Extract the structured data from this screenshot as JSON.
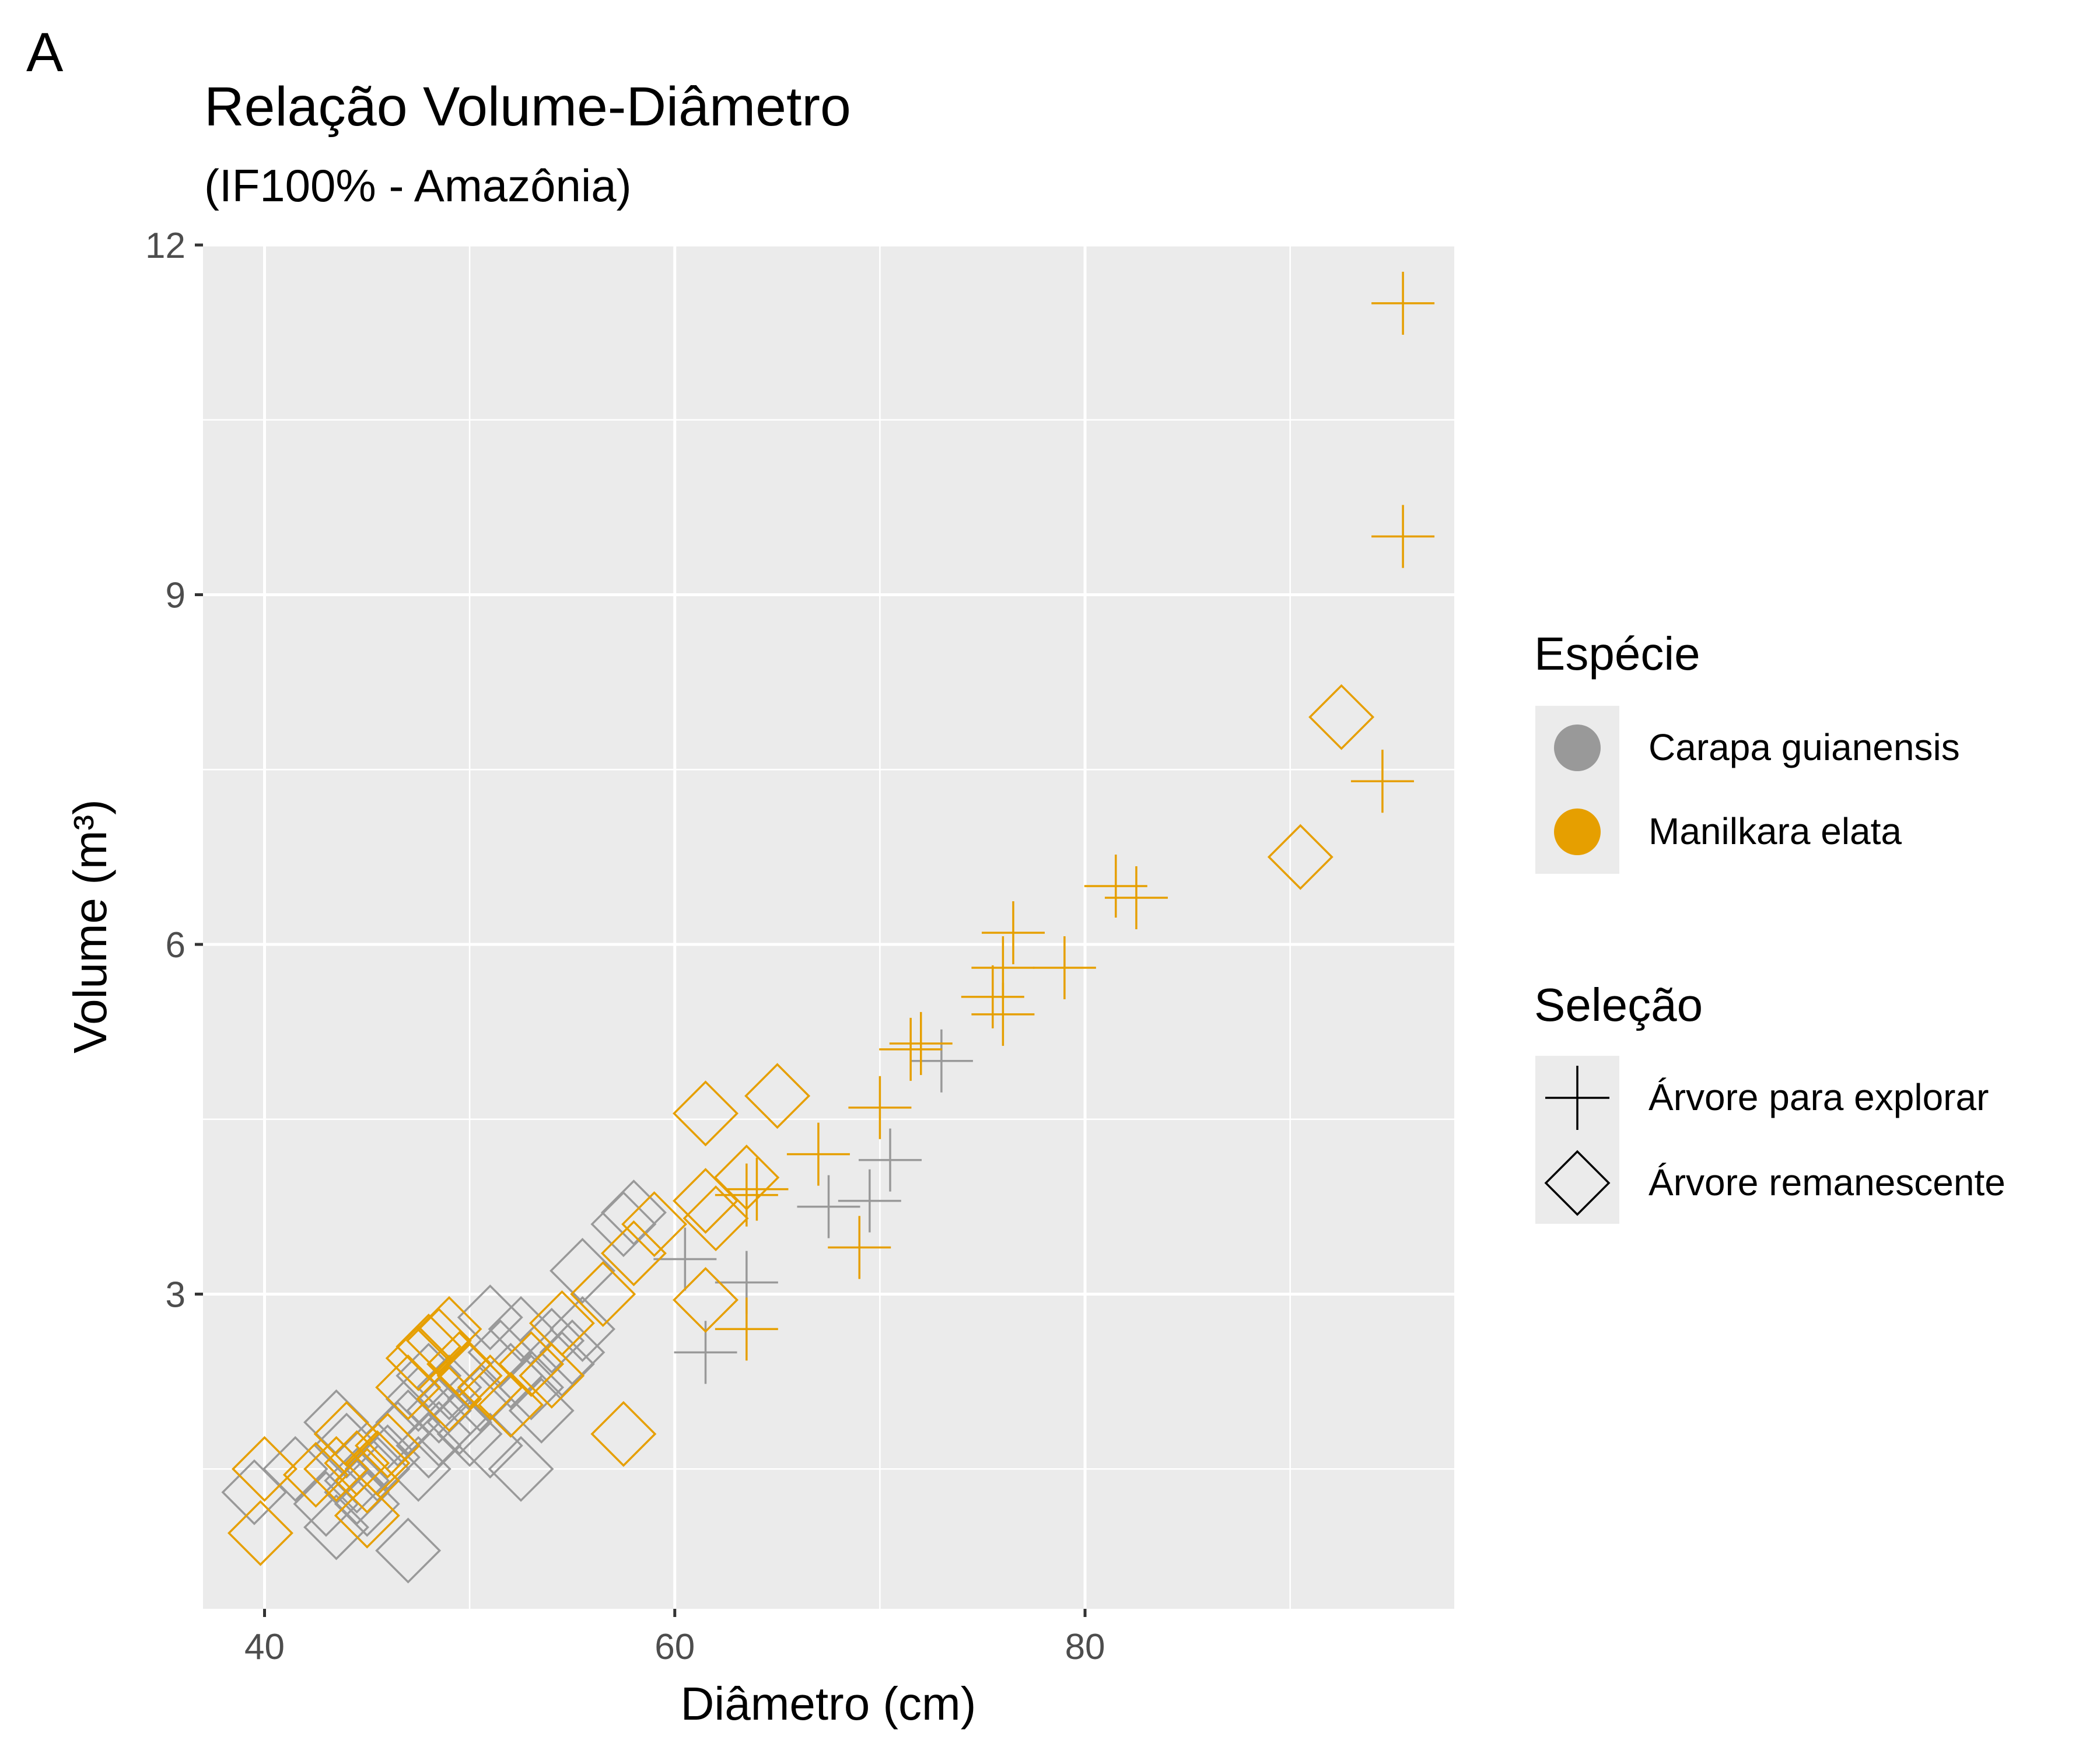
{
  "panel_tag": "A",
  "chart_data": {
    "type": "scatter",
    "title": "Relação Volume-Diâmetro",
    "subtitle": "(IF100% - Amazônia)",
    "xlabel": "Diâmetro (cm)",
    "ylabel": "Volume (m³)",
    "xlim": [
      37,
      98
    ],
    "ylim": [
      0.3,
      12
    ],
    "x_ticks": [
      40,
      60,
      80
    ],
    "y_ticks": [
      3,
      6,
      9,
      12
    ],
    "x_tick_labels": [
      "40",
      "60",
      "80"
    ],
    "y_tick_labels": [
      "3",
      "6",
      "9",
      "12"
    ],
    "grid": true,
    "panel_background": "#EBEBEB",
    "legend_placement": "right",
    "legends": {
      "color": {
        "title": "Espécie",
        "entries": [
          {
            "label": "Carapa guianensis",
            "color": "#999999"
          },
          {
            "label": "Manilkara elata",
            "color": "#E69F00"
          }
        ]
      },
      "shape": {
        "title": "Seleção",
        "entries": [
          {
            "label": "Árvore para explorar",
            "shape": "plus"
          },
          {
            "label": "Árvore remanescente",
            "shape": "diamond"
          }
        ]
      }
    },
    "series": [
      {
        "species": "Carapa guianensis",
        "selection": "Árvore para explorar",
        "color": "#999999",
        "shape": "plus",
        "points": [
          [
            61.5,
            2.5
          ],
          [
            63.5,
            3.1
          ],
          [
            60.5,
            3.3
          ],
          [
            67.5,
            3.75
          ],
          [
            69.5,
            3.8
          ],
          [
            70.5,
            4.15
          ],
          [
            73.0,
            5.0
          ]
        ]
      },
      {
        "species": "Carapa guianensis",
        "selection": "Árvore remanescente",
        "color": "#999999",
        "shape": "diamond",
        "points": [
          [
            39.5,
            1.3
          ],
          [
            41.5,
            1.5
          ],
          [
            43.0,
            1.2
          ],
          [
            43.5,
            1.0
          ],
          [
            43.5,
            1.9
          ],
          [
            44.0,
            1.7
          ],
          [
            44.5,
            1.3
          ],
          [
            44.5,
            1.4
          ],
          [
            45.0,
            1.2
          ],
          [
            45.5,
            1.5
          ],
          [
            46.0,
            1.6
          ],
          [
            46.5,
            1.8
          ],
          [
            47.0,
            0.8
          ],
          [
            47.0,
            1.9
          ],
          [
            47.5,
            1.5
          ],
          [
            47.5,
            2.1
          ],
          [
            48.0,
            1.7
          ],
          [
            48.0,
            2.3
          ],
          [
            48.5,
            2.0
          ],
          [
            48.5,
            1.8
          ],
          [
            49.0,
            2.2
          ],
          [
            49.5,
            1.9
          ],
          [
            50.0,
            1.8
          ],
          [
            50.0,
            2.3
          ],
          [
            50.5,
            2.1
          ],
          [
            51.0,
            2.8
          ],
          [
            51.0,
            1.7
          ],
          [
            51.5,
            2.5
          ],
          [
            52.0,
            2.3
          ],
          [
            52.5,
            1.5
          ],
          [
            52.5,
            2.7
          ],
          [
            53.0,
            2.2
          ],
          [
            53.5,
            2.0
          ],
          [
            54.0,
            2.6
          ],
          [
            54.5,
            2.4
          ],
          [
            55.0,
            2.5
          ],
          [
            55.5,
            2.7
          ],
          [
            55.5,
            3.2
          ],
          [
            57.5,
            3.6
          ],
          [
            58.0,
            3.7
          ]
        ]
      },
      {
        "species": "Manilkara elata",
        "selection": "Árvore para explorar",
        "color": "#E69F00",
        "shape": "plus",
        "points": [
          [
            95.5,
            11.5
          ],
          [
            95.5,
            9.5
          ],
          [
            94.5,
            7.4
          ],
          [
            81.5,
            6.5
          ],
          [
            82.5,
            6.4
          ],
          [
            76.5,
            6.1
          ],
          [
            79.0,
            5.8
          ],
          [
            76.0,
            5.8
          ],
          [
            75.5,
            5.55
          ],
          [
            76.0,
            5.4
          ],
          [
            72.0,
            5.15
          ],
          [
            71.5,
            5.1
          ],
          [
            70.0,
            4.6
          ],
          [
            67.0,
            4.2
          ],
          [
            64.0,
            3.9
          ],
          [
            63.5,
            3.85
          ],
          [
            69.0,
            3.4
          ],
          [
            63.5,
            2.7
          ]
        ]
      },
      {
        "species": "Manilkara elata",
        "selection": "Árvore remanescente",
        "color": "#E69F00",
        "shape": "diamond",
        "points": [
          [
            92.5,
            7.95
          ],
          [
            90.5,
            6.75
          ],
          [
            65.0,
            4.7
          ],
          [
            61.5,
            4.55
          ],
          [
            63.5,
            4.0
          ],
          [
            61.5,
            3.8
          ],
          [
            62.0,
            3.65
          ],
          [
            59.0,
            3.6
          ],
          [
            58.0,
            3.35
          ],
          [
            61.5,
            2.95
          ],
          [
            56.5,
            3.0
          ],
          [
            54.5,
            2.75
          ],
          [
            54.0,
            2.3
          ],
          [
            57.5,
            1.8
          ],
          [
            53.0,
            2.4
          ],
          [
            52.0,
            2.05
          ],
          [
            51.0,
            2.2
          ],
          [
            50.0,
            2.3
          ],
          [
            49.5,
            2.4
          ],
          [
            49.0,
            2.7
          ],
          [
            48.5,
            2.6
          ],
          [
            48.0,
            2.55
          ],
          [
            47.5,
            2.45
          ],
          [
            47.0,
            2.2
          ],
          [
            49.0,
            2.1
          ],
          [
            46.0,
            1.7
          ],
          [
            45.5,
            1.55
          ],
          [
            45.0,
            1.4
          ],
          [
            44.5,
            1.55
          ],
          [
            44.0,
            1.8
          ],
          [
            43.5,
            1.5
          ],
          [
            42.5,
            1.45
          ],
          [
            45.0,
            1.1
          ],
          [
            40.0,
            1.5
          ],
          [
            39.8,
            0.95
          ]
        ]
      }
    ]
  }
}
